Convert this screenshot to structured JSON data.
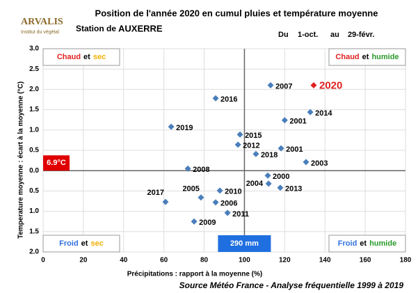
{
  "header": {
    "logo": "ARVALIS",
    "logo_sub": "Institut du végétal",
    "station_label": "Station de",
    "station": "AUXERRE",
    "from_label": "Du",
    "from": "1-oct.",
    "to_label": "au",
    "to": "29-févr."
  },
  "chart_data": {
    "type": "scatter",
    "title": "Position de l'année 2020 en cumul pluies et température moyenne",
    "x_label": "Précipitations : rapport à la moyenne (%)",
    "y_label": "Temperature moyenne : écart à la moyenne (°C)",
    "xlim": [
      0,
      180
    ],
    "xticks": [
      0,
      20,
      40,
      60,
      80,
      100,
      120,
      140,
      160,
      180
    ],
    "ylim": [
      -2,
      3
    ],
    "yticks": [
      {
        "value": -2,
        "label": "2.0"
      },
      {
        "value": -1.5,
        "label": "1.5"
      },
      {
        "value": -1,
        "label": "1.0"
      },
      {
        "value": -0.5,
        "label": "0.5"
      },
      {
        "value": 0,
        "label": "0.0"
      },
      {
        "value": 0.5,
        "label": "0.5"
      },
      {
        "value": 1,
        "label": "1.0"
      },
      {
        "value": 1.5,
        "label": "1.5"
      },
      {
        "value": 2,
        "label": "2.0"
      },
      {
        "value": 2.5,
        "label": "2.5"
      },
      {
        "value": 3,
        "label": "3.0"
      }
    ],
    "grid": true,
    "color": "#4a7ebb",
    "points": [
      {
        "label": "2007",
        "x": 113,
        "y": 2.1
      },
      {
        "label": "2016",
        "x": 85.7,
        "y": 1.78
      },
      {
        "label": "2014",
        "x": 132.7,
        "y": 1.44
      },
      {
        "label": "2001",
        "x": 120,
        "y": 1.24
      },
      {
        "label": "2019",
        "x": 63.6,
        "y": 1.08
      },
      {
        "label": "2015",
        "x": 97.8,
        "y": 0.89
      },
      {
        "label": "2012",
        "x": 96.8,
        "y": 0.64
      },
      {
        "label": "2018",
        "x": 105.7,
        "y": 0.41
      },
      {
        "label": "2001",
        "x": 118.2,
        "y": 0.55
      },
      {
        "label": "2003",
        "x": 130.6,
        "y": 0.21
      },
      {
        "label": "2008",
        "x": 71.9,
        "y": 0.05
      },
      {
        "label": "2000",
        "x": 111.6,
        "y": -0.12
      },
      {
        "label": "2004",
        "x": 112,
        "y": -0.32
      },
      {
        "label": "2013",
        "x": 117.8,
        "y": -0.42
      },
      {
        "label": "2010",
        "x": 87.8,
        "y": -0.49
      },
      {
        "label": "2005",
        "x": 78.4,
        "y": -0.66
      },
      {
        "label": "2006",
        "x": 85.7,
        "y": -0.78
      },
      {
        "label": "2017",
        "x": 60.8,
        "y": -0.77
      },
      {
        "label": "2011",
        "x": 91.6,
        "y": -1.04
      },
      {
        "label": "2009",
        "x": 75,
        "y": -1.25
      }
    ],
    "highlight": {
      "label": "2020",
      "x": 134.4,
      "y": 2.1,
      "color": "#e02020"
    },
    "mean_temp": {
      "value": 0,
      "label": "6.9°C"
    },
    "mean_rain": {
      "value": 100,
      "label": "290 mm"
    },
    "corners": {
      "top_left": [
        "Chaud",
        "et",
        "sec"
      ],
      "top_right": [
        "Chaud",
        "et",
        "humide"
      ],
      "bottom_left": [
        "Froid",
        "et",
        "sec"
      ],
      "bottom_right": [
        "Froid",
        "et",
        "humide"
      ]
    },
    "source": "Source Météo France - Analyse fréquentielle 1999 à 2019"
  }
}
